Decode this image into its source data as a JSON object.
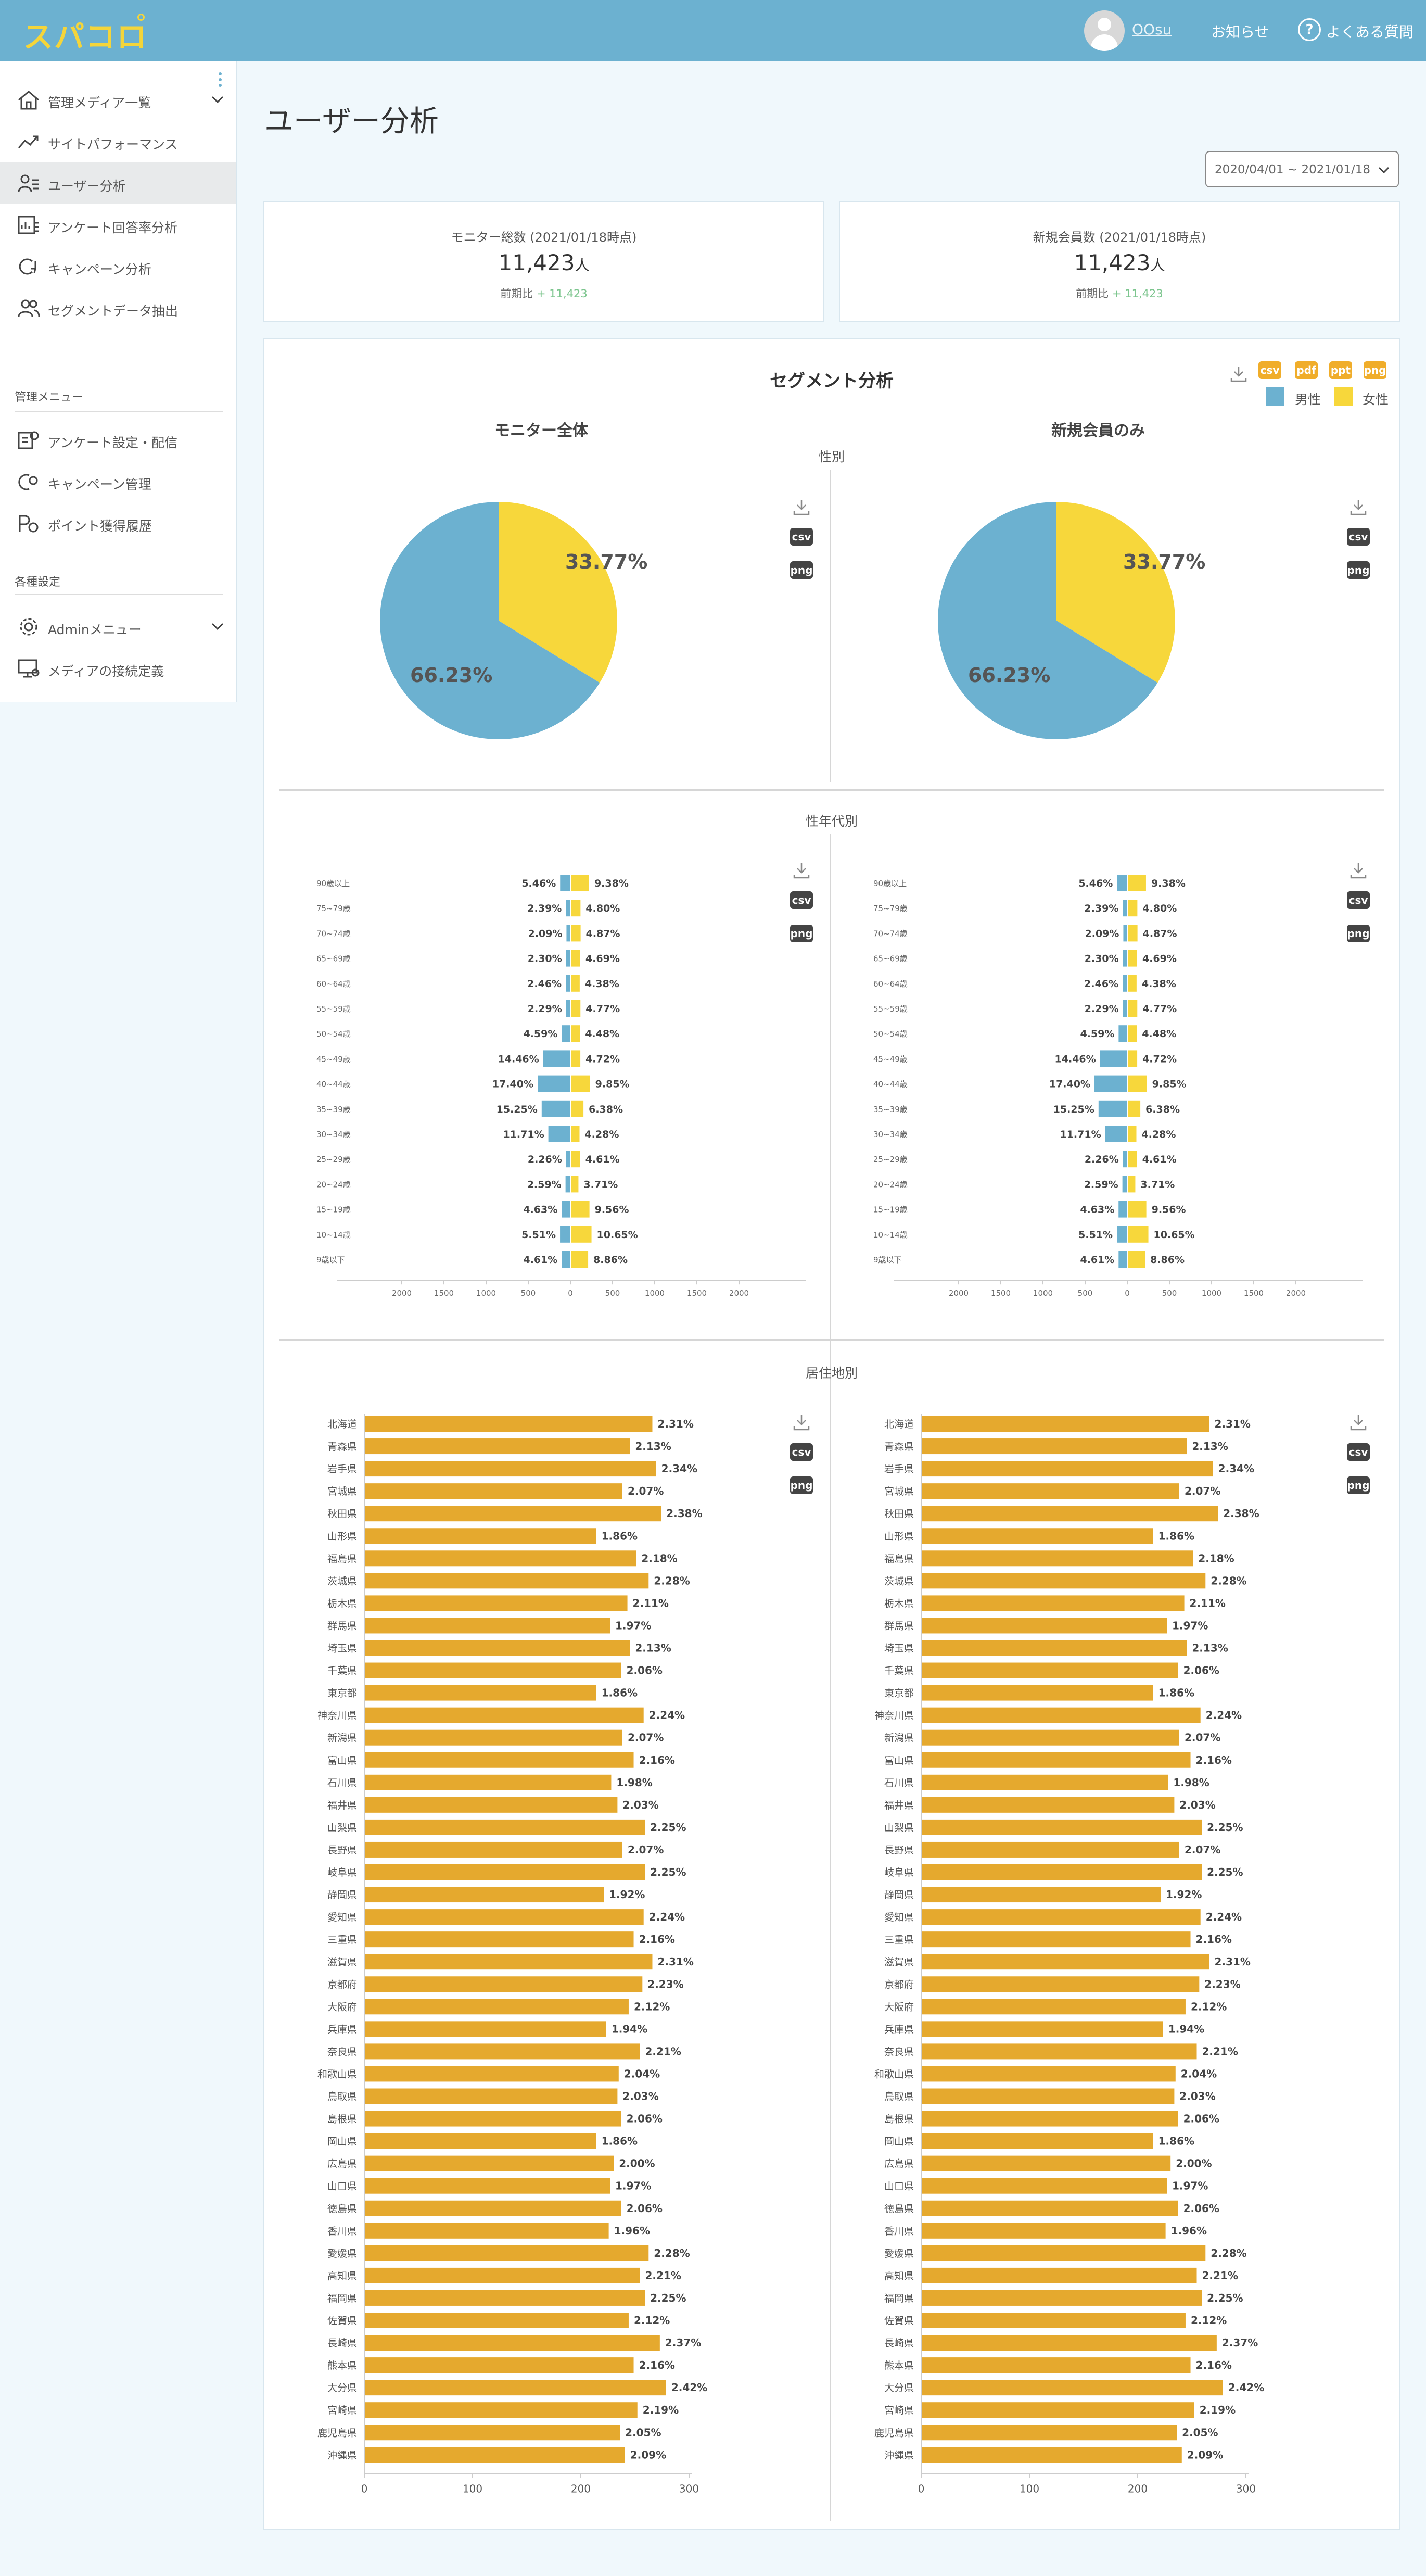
{
  "header": {
    "logo": "スパコロ",
    "user_name": "OOsu",
    "notice": "お知らせ",
    "faq_icon": "?",
    "faq": "よくある質問"
  },
  "sidebar": {
    "items": [
      {
        "label": "管理メディア一覧",
        "icon": "home-icon"
      },
      {
        "label": "サイトパフォーマンス",
        "icon": "trend-icon"
      },
      {
        "label": "ユーザー分析",
        "icon": "users-icon"
      },
      {
        "label": "アンケート回答率分析",
        "icon": "survey-chart-icon"
      },
      {
        "label": "キャンペーン分析",
        "icon": "campaign-icon"
      },
      {
        "label": "セグメントデータ抽出",
        "icon": "people-icon"
      }
    ],
    "section_admin": "管理メニュー",
    "admin_items": [
      {
        "label": "アンケート設定・配信",
        "icon": "survey-settings-icon"
      },
      {
        "label": "キャンペーン管理",
        "icon": "campaign-gear-icon"
      },
      {
        "label": "ポイント獲得履歴",
        "icon": "point-icon"
      }
    ],
    "section_settings": "各種設定",
    "settings_items": [
      {
        "label": "Adminメニュー",
        "icon": "gear-icon"
      },
      {
        "label": "メディアの接続定義",
        "icon": "monitor-icon"
      }
    ]
  },
  "page": {
    "title": "ユーザー分析",
    "date_range": "2020/04/01 ~ 2021/01/18"
  },
  "stats": [
    {
      "label": "モニター総数 (2021/01/18時点)",
      "value": "11,423",
      "unit": "人",
      "prev_label": "前期比",
      "delta": "+ 11,423"
    },
    {
      "label": "新規会員数 (2021/01/18時点)",
      "value": "11,423",
      "unit": "人",
      "prev_label": "前期比",
      "delta": "+ 11,423"
    }
  ],
  "segment": {
    "title": "セグメント分析",
    "formats": [
      "csv",
      "pdf",
      "ppt",
      "png"
    ],
    "legend": [
      {
        "label": "男性",
        "color": "#6cb1d0"
      },
      {
        "label": "女性",
        "color": "#f7d73b"
      }
    ],
    "col_left": "モニター全体",
    "col_right": "新規会員のみ",
    "sec_gender": "性別",
    "sec_age": "性年代別",
    "sec_region": "居住地別",
    "btn_csv": "csv",
    "btn_png": "png"
  },
  "colors": {
    "male": "#6cb1d0",
    "female": "#f7d73b",
    "region": "#e5a92e",
    "accent": "#6cb1d0"
  },
  "chart_data": [
    {
      "type": "pie",
      "title": "性別",
      "labels": [
        "男性",
        "女性"
      ],
      "values": [
        66.23,
        33.77
      ],
      "value_labels": [
        "66.23%",
        "33.77%"
      ]
    },
    {
      "type": "bar",
      "title": "性年代別",
      "orientation": "horizontal-butterfly",
      "categories": [
        "90歳以上",
        "75~79歳",
        "70~74歳",
        "65~69歳",
        "60~64歳",
        "55~59歳",
        "50~54歳",
        "45~49歳",
        "40~44歳",
        "35~39歳",
        "30~34歳",
        "25~29歳",
        "20~24歳",
        "15~19歳",
        "10~14歳",
        "9歳以下"
      ],
      "series": [
        {
          "name": "男性",
          "values": [
            5.46,
            2.39,
            2.09,
            2.3,
            2.46,
            2.29,
            4.59,
            14.46,
            17.4,
            15.25,
            11.71,
            2.26,
            2.59,
            4.63,
            5.51,
            4.61
          ]
        },
        {
          "name": "女性",
          "values": [
            9.38,
            4.8,
            4.87,
            4.69,
            4.38,
            4.77,
            4.48,
            4.72,
            9.85,
            6.38,
            4.28,
            4.61,
            3.71,
            9.56,
            10.65,
            8.86
          ]
        }
      ],
      "xticks": [
        "2000",
        "1500",
        "1000",
        "500",
        "0",
        "500",
        "1000",
        "1500",
        "2000"
      ]
    },
    {
      "type": "bar",
      "title": "居住地別",
      "orientation": "horizontal",
      "categories": [
        "北海道",
        "青森県",
        "岩手県",
        "宮城県",
        "秋田県",
        "山形県",
        "福島県",
        "茨城県",
        "栃木県",
        "群馬県",
        "埼玉県",
        "千葉県",
        "東京都",
        "神奈川県",
        "新潟県",
        "富山県",
        "石川県",
        "福井県",
        "山梨県",
        "長野県",
        "岐阜県",
        "静岡県",
        "愛知県",
        "三重県",
        "滋賀県",
        "京都府",
        "大阪府",
        "兵庫県",
        "奈良県",
        "和歌山県",
        "鳥取県",
        "島根県",
        "岡山県",
        "広島県",
        "山口県",
        "徳島県",
        "香川県",
        "愛媛県",
        "高知県",
        "福岡県",
        "佐賀県",
        "長崎県",
        "熊本県",
        "大分県",
        "宮崎県",
        "鹿児島県",
        "沖縄県"
      ],
      "values": [
        2.31,
        2.13,
        2.34,
        2.07,
        2.38,
        1.86,
        2.18,
        2.28,
        2.11,
        1.97,
        2.13,
        2.06,
        1.86,
        2.24,
        2.07,
        2.16,
        1.98,
        2.03,
        2.25,
        2.07,
        2.25,
        1.92,
        2.24,
        2.16,
        2.31,
        2.23,
        2.12,
        1.94,
        2.21,
        2.04,
        2.03,
        2.06,
        1.86,
        2.0,
        1.97,
        2.06,
        1.96,
        2.28,
        2.21,
        2.25,
        2.12,
        2.37,
        2.16,
        2.42,
        2.19,
        2.05,
        2.09
      ],
      "xticks": [
        "0",
        "100",
        "200",
        "300"
      ]
    }
  ]
}
